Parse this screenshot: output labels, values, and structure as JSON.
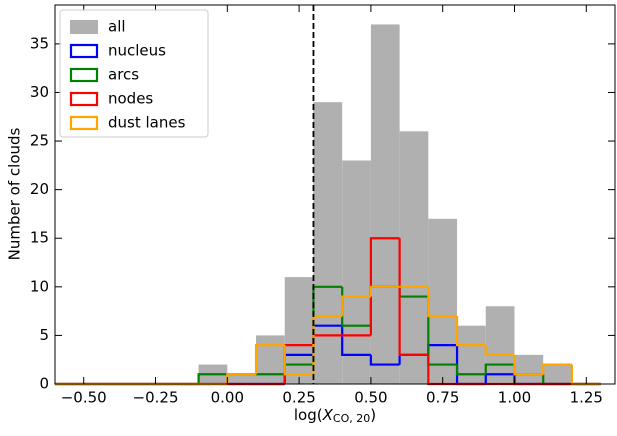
{
  "chart_data": {
    "type": "histogram",
    "x_label": {
      "pre": "log(",
      "var": "X",
      "sub": "CO, 20",
      "post": ")"
    },
    "y_label": "Number of clouds",
    "bins": [
      -0.6,
      -0.5,
      -0.4,
      -0.3,
      -0.2,
      -0.1,
      0.0,
      0.1,
      0.2,
      0.3,
      0.4,
      0.5,
      0.6,
      0.7,
      0.8,
      0.9,
      1.0,
      1.1,
      1.2,
      1.3
    ],
    "series": [
      {
        "name": "all",
        "color": "#b0b0b0",
        "style": "filled",
        "values": [
          0,
          0,
          0,
          0,
          0,
          2,
          1,
          5,
          11,
          29,
          23,
          37,
          26,
          17,
          6,
          8,
          3,
          2,
          0
        ]
      },
      {
        "name": "nucleus",
        "color": "#0000ff",
        "style": "step",
        "values": [
          0,
          0,
          0,
          0,
          0,
          0,
          0,
          0,
          3,
          6,
          3,
          2,
          3,
          4,
          0,
          1,
          0,
          0,
          0
        ]
      },
      {
        "name": "arcs",
        "color": "#008000",
        "style": "step",
        "values": [
          0,
          0,
          0,
          0,
          0,
          1,
          1,
          1,
          2,
          10,
          6,
          10,
          9,
          2,
          1,
          2,
          1,
          0,
          0
        ]
      },
      {
        "name": "nodes",
        "color": "#ff0000",
        "style": "step",
        "values": [
          0,
          0,
          0,
          0,
          0,
          0,
          0,
          0,
          4,
          5,
          5,
          15,
          3,
          0,
          0,
          0,
          0,
          0,
          0
        ]
      },
      {
        "name": "dust lanes",
        "color": "#ffa500",
        "style": "step",
        "values": [
          0,
          0,
          0,
          0,
          0,
          0,
          1,
          4,
          1,
          7,
          9,
          10,
          10,
          7,
          4,
          3,
          1,
          2,
          0
        ]
      }
    ],
    "vline": 0.3,
    "xlim": [
      -0.6,
      1.35
    ],
    "ylim": [
      0,
      39
    ],
    "xticks": [
      {
        "value": -0.5,
        "label": "−0.50"
      },
      {
        "value": -0.25,
        "label": "−0.25"
      },
      {
        "value": 0,
        "label": "0.00"
      },
      {
        "value": 0.25,
        "label": "0.25"
      },
      {
        "value": 0.5,
        "label": "0.50"
      },
      {
        "value": 0.75,
        "label": "0.75"
      },
      {
        "value": 1,
        "label": "1.00"
      },
      {
        "value": 1.25,
        "label": "1.25"
      }
    ],
    "yticks": [
      0,
      5,
      10,
      15,
      20,
      25,
      30,
      35
    ],
    "legend": "upper left"
  }
}
